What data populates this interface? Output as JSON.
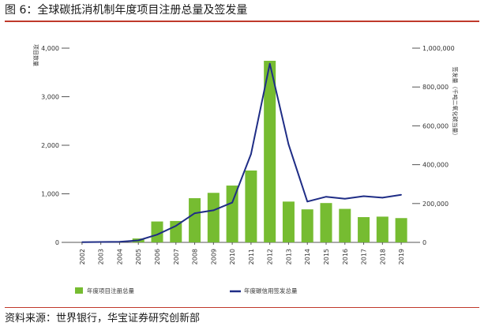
{
  "title": "图 6：全球碳抵消机制年度项目注册总量及签发量",
  "source": "资料来源：世界银行，华宝证券研究创新部",
  "colors": {
    "bar": "#76bc31",
    "line": "#1f2d86",
    "axis": "#555555",
    "rule": "#c0392b"
  },
  "chart_data": {
    "type": "bar",
    "categories": [
      "2002",
      "2003",
      "2004",
      "2005",
      "2006",
      "2007",
      "2008",
      "2009",
      "2010",
      "2011",
      "2012",
      "2013",
      "2014",
      "2015",
      "2016",
      "2017",
      "2018",
      "2019"
    ],
    "series": [
      {
        "name": "年度项目注册总量",
        "type": "bar",
        "axis": "left",
        "values": [
          0,
          0,
          0,
          80,
          430,
          440,
          910,
          1020,
          1170,
          1480,
          3740,
          840,
          680,
          810,
          690,
          520,
          530,
          500
        ]
      },
      {
        "name": "年度碳信用签发总量",
        "type": "line",
        "axis": "right",
        "values": [
          1000,
          2000,
          3000,
          10000,
          40000,
          85000,
          150000,
          165000,
          205000,
          455000,
          920000,
          505000,
          210000,
          235000,
          225000,
          238000,
          230000,
          245000
        ]
      }
    ],
    "y_left": {
      "label": "项目数量",
      "lim": [
        0,
        4000
      ],
      "ticks": [
        "0",
        "1,000",
        "2,000",
        "3,000",
        "4,000"
      ],
      "tick_values": [
        0,
        1000,
        2000,
        3000,
        4000
      ]
    },
    "y_right": {
      "label": "签发量（千吨二氧化碳当量）",
      "lim": [
        0,
        1000000
      ],
      "ticks": [
        "0",
        "200,000",
        "400,000",
        "600,000",
        "800,000",
        "1,000,000"
      ],
      "tick_values": [
        0,
        200000,
        400000,
        600000,
        800000,
        1000000
      ]
    },
    "grid": false,
    "legend_position": "bottom"
  }
}
